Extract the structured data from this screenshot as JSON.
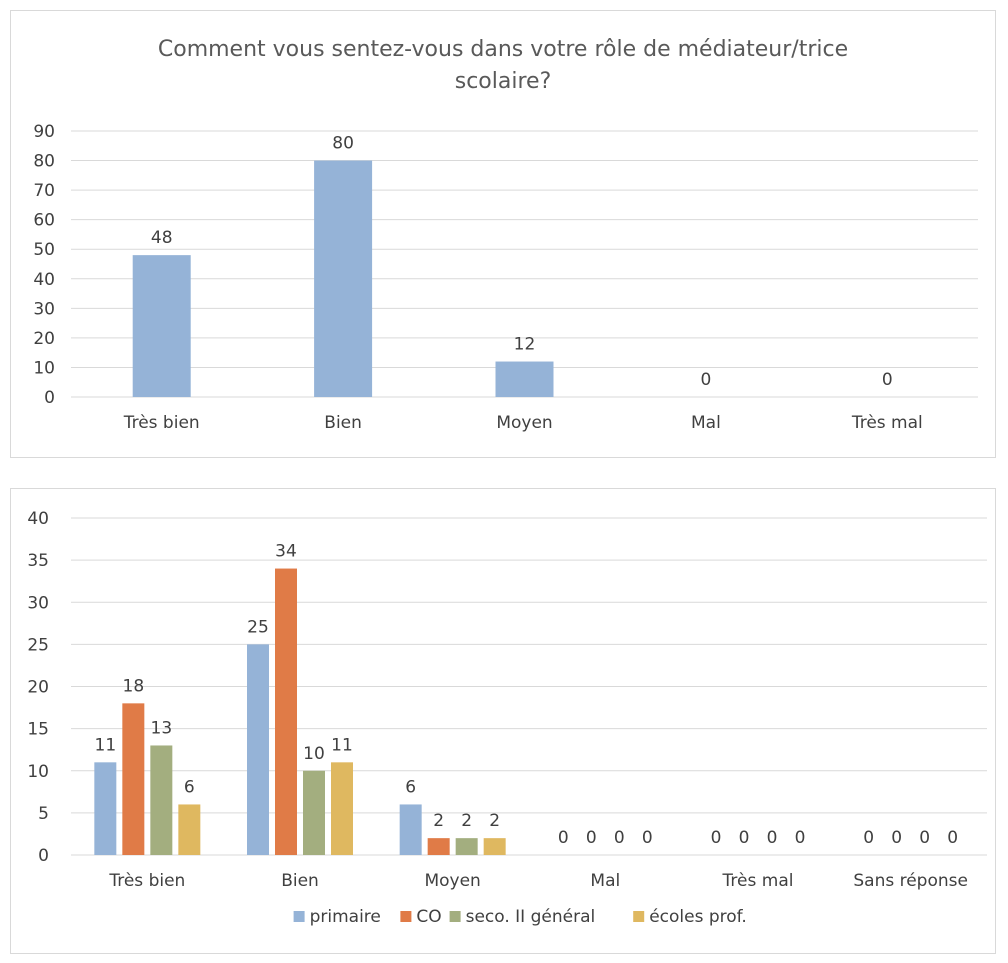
{
  "chart_data": [
    {
      "type": "bar",
      "title_lines": [
        "Comment vous sentez-vous dans votre rôle de médiateur/trice",
        "scolaire?"
      ],
      "categories": [
        "Très bien",
        "Bien",
        "Moyen",
        "Mal",
        "Très mal"
      ],
      "values": [
        48,
        80,
        12,
        0,
        0
      ],
      "ylim": [
        0,
        90
      ],
      "yticks": [
        0,
        10,
        20,
        30,
        40,
        50,
        60,
        70,
        80,
        90
      ],
      "grid": true,
      "legend": "none",
      "colors": {
        "bar": "#95b3d7"
      }
    },
    {
      "type": "bar",
      "categories": [
        "Très bien",
        "Bien",
        "Moyen",
        "Mal",
        "Très mal",
        "Sans réponse"
      ],
      "series": [
        {
          "name": "primaire",
          "values": [
            11,
            25,
            6,
            0,
            0,
            0
          ],
          "color": "#95b3d7"
        },
        {
          "name": "CO",
          "values": [
            18,
            34,
            2,
            0,
            0,
            0
          ],
          "color": "#e07b47"
        },
        {
          "name": "seco. II général",
          "values": [
            13,
            10,
            2,
            0,
            0,
            0
          ],
          "color": "#a3ae7f"
        },
        {
          "name": "écoles prof.",
          "values": [
            6,
            11,
            2,
            0,
            0,
            0
          ],
          "color": "#dfb860"
        }
      ],
      "ylim": [
        0,
        40
      ],
      "yticks": [
        0,
        5,
        10,
        15,
        20,
        25,
        30,
        35,
        40
      ],
      "grid": true,
      "legend": "bottom"
    }
  ]
}
